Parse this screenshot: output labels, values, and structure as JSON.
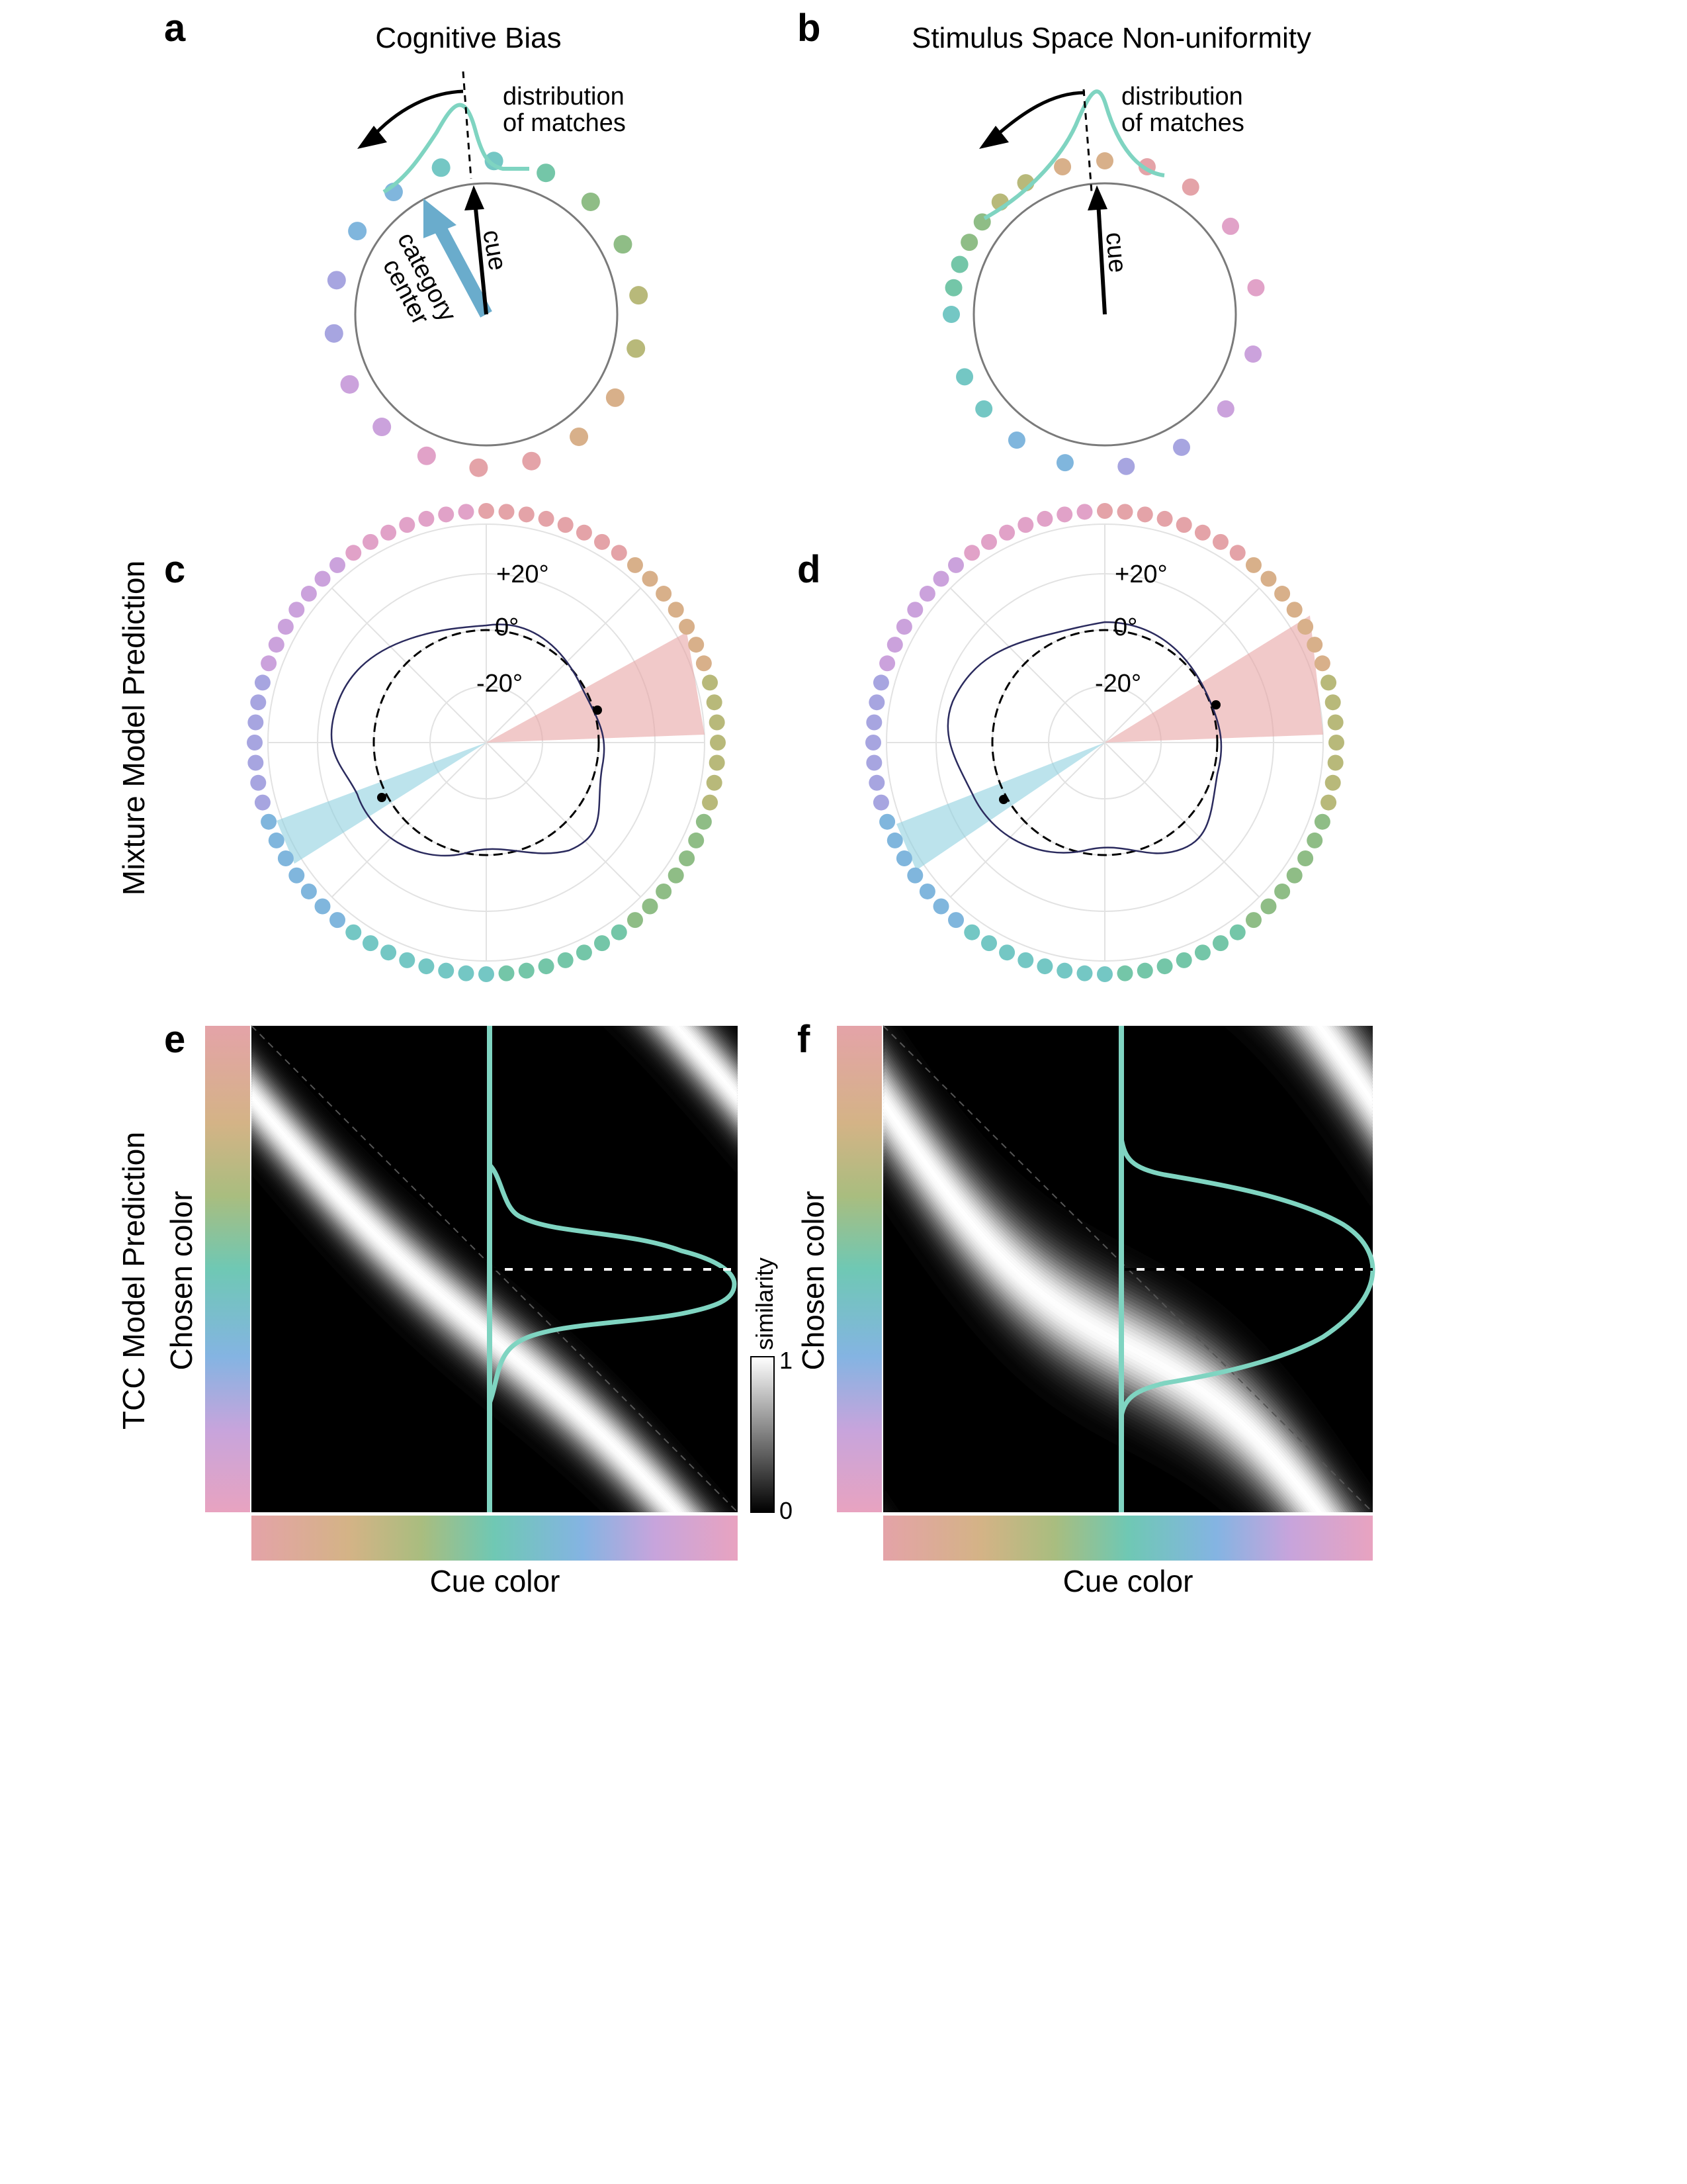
{
  "panels": {
    "a": {
      "label": "a",
      "title": "Cognitive Bias",
      "distribution_label": [
        "distribution",
        "of matches"
      ],
      "cue_label": "cue",
      "category_label": [
        "category",
        "center"
      ]
    },
    "b": {
      "label": "b",
      "title": "Stimulus Space Non-uniformity",
      "distribution_label": [
        "distribution",
        "of matches"
      ],
      "cue_label": "cue"
    },
    "c": {
      "label": "c",
      "row_label": "Mixture Model Prediction",
      "ticks": [
        "+20°",
        "0°",
        "-20°"
      ]
    },
    "d": {
      "label": "d",
      "ticks": [
        "+20°",
        "0°",
        "-20°"
      ]
    },
    "e": {
      "label": "e",
      "row_label": "TCC Model Prediction",
      "ylabel": "Chosen color",
      "xlabel": "Cue color",
      "colorbar": {
        "label": "similarity",
        "max": "1",
        "min": "0"
      }
    },
    "f": {
      "label": "f",
      "ylabel": "Chosen color",
      "xlabel": "Cue color"
    }
  },
  "colors": {
    "cue_curve": "#7fd4c1",
    "category_arrow": "#6aaccc",
    "bias_wedge_pink": "#e8a5a5",
    "bias_wedge_blue": "#8fd0e0",
    "hue_wheel": [
      "#e4a3a8",
      "#d8b08a",
      "#b8b97a",
      "#8fbd86",
      "#74c6a8",
      "#74c7c4",
      "#80b6dd",
      "#a7a5e0",
      "#cba2dc",
      "#e1a2c8"
    ]
  }
}
